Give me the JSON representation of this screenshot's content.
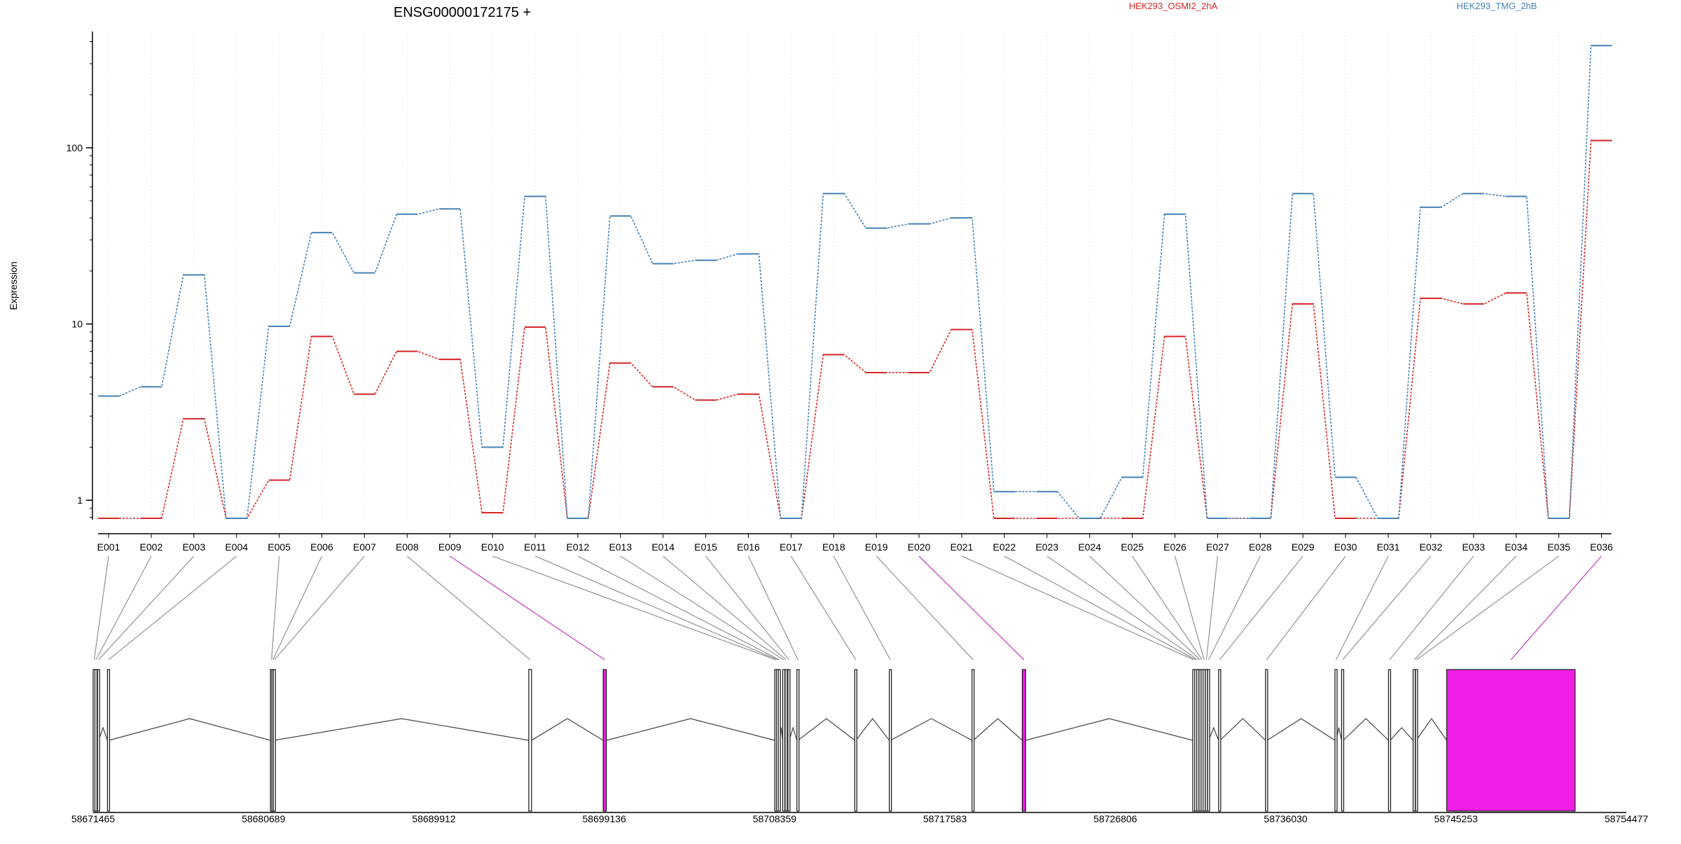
{
  "chart_data": {
    "type": "line",
    "title": "ENSG00000172175 +",
    "xlabel": "",
    "ylabel": "Expression",
    "y_scale": "log",
    "ylim": [
      0.45,
      450
    ],
    "y_ticks": [
      1,
      10,
      100
    ],
    "y_tick_labels": [
      "1",
      "10",
      "100"
    ],
    "grid": "vertical, light",
    "legend_position": "top-right",
    "categories": [
      "E001",
      "E002",
      "E003",
      "E004",
      "E005",
      "E006",
      "E007",
      "E008",
      "E009",
      "E010",
      "E011",
      "E012",
      "E013",
      "E014",
      "E015",
      "E016",
      "E017",
      "E018",
      "E019",
      "E020",
      "E021",
      "E022",
      "E023",
      "E024",
      "E025",
      "E026",
      "E027",
      "E028",
      "E029",
      "E030",
      "E031",
      "E032",
      "E033",
      "E034",
      "E035",
      "E036"
    ],
    "series": [
      {
        "name": "HEK293_OSMI2_2hA",
        "color": "#d62728",
        "values": [
          0.65,
          0.65,
          2.9,
          0.48,
          1.3,
          8.5,
          4.0,
          7.0,
          6.3,
          0.85,
          9.6,
          0.48,
          6.0,
          4.4,
          3.7,
          4.0,
          0.48,
          6.7,
          5.3,
          5.3,
          9.3,
          0.48,
          0.48,
          0.48,
          0.48,
          8.5,
          0.48,
          0.48,
          13.0,
          0.48,
          0.48,
          14.0,
          13.0,
          15.0,
          0.48,
          110
        ]
      },
      {
        "name": "HEK293_TMG_2hB",
        "color": "#4682b4",
        "values": [
          3.9,
          4.4,
          19,
          0.48,
          9.7,
          33,
          19.5,
          42,
          45,
          2.0,
          53,
          0.48,
          41,
          22,
          23,
          25,
          0.48,
          55,
          35,
          37,
          40,
          1.12,
          1.12,
          0.62,
          1.35,
          42,
          0.62,
          0.62,
          55,
          1.35,
          0.48,
          46,
          55,
          53,
          0.48,
          380
        ]
      }
    ],
    "genomic_axis": {
      "tick_labels": [
        "58671465",
        "58680689",
        "58689912",
        "58699136",
        "58708359",
        "58717583",
        "58726806",
        "58736030",
        "58745253",
        "58754477"
      ],
      "exons": [
        {
          "id": "E001",
          "start": 58671465,
          "end": 58671510,
          "highlight": false
        },
        {
          "id": "E002",
          "start": 58671560,
          "end": 58671640,
          "highlight": false
        },
        {
          "id": "E003",
          "start": 58671700,
          "end": 58671760,
          "highlight": false
        },
        {
          "id": "E004",
          "start": 58672240,
          "end": 58672310,
          "highlight": false
        },
        {
          "id": "E005",
          "start": 58681065,
          "end": 58681130,
          "highlight": false
        },
        {
          "id": "E006",
          "start": 58681140,
          "end": 58681210,
          "highlight": false
        },
        {
          "id": "E007",
          "start": 58681220,
          "end": 58681280,
          "highlight": false
        },
        {
          "id": "E008",
          "start": 58695050,
          "end": 58695200,
          "highlight": false
        },
        {
          "id": "E009",
          "start": 58699080,
          "end": 58699250,
          "highlight": true
        },
        {
          "id": "E010",
          "start": 58708370,
          "end": 58708420,
          "highlight": false
        },
        {
          "id": "E011",
          "start": 58708460,
          "end": 58708540,
          "highlight": false
        },
        {
          "id": "E012",
          "start": 58708560,
          "end": 58708640,
          "highlight": false
        },
        {
          "id": "E013",
          "start": 58708800,
          "end": 58708880,
          "highlight": false
        },
        {
          "id": "E014",
          "start": 58708930,
          "end": 58709000,
          "highlight": false
        },
        {
          "id": "E015",
          "start": 58709080,
          "end": 58709150,
          "highlight": false
        },
        {
          "id": "E016",
          "start": 58709570,
          "end": 58709630,
          "highlight": false
        },
        {
          "id": "E017",
          "start": 58712700,
          "end": 58712760,
          "highlight": false
        },
        {
          "id": "E018",
          "start": 58714570,
          "end": 58714640,
          "highlight": false
        },
        {
          "id": "E019",
          "start": 58719050,
          "end": 58719120,
          "highlight": false
        },
        {
          "id": "E020",
          "start": 58721770,
          "end": 58721950,
          "highlight": true
        },
        {
          "id": "E021",
          "start": 58731000,
          "end": 58731070,
          "highlight": false
        },
        {
          "id": "E022",
          "start": 58731110,
          "end": 58731170,
          "highlight": false
        },
        {
          "id": "E023",
          "start": 58731220,
          "end": 58731280,
          "highlight": false
        },
        {
          "id": "E024",
          "start": 58731340,
          "end": 58731400,
          "highlight": false
        },
        {
          "id": "E025",
          "start": 58731450,
          "end": 58731520,
          "highlight": false
        },
        {
          "id": "E026",
          "start": 58731560,
          "end": 58731630,
          "highlight": false
        },
        {
          "id": "E027",
          "start": 58731680,
          "end": 58731740,
          "highlight": false
        },
        {
          "id": "E028",
          "start": 58731800,
          "end": 58731860,
          "highlight": false
        },
        {
          "id": "E029",
          "start": 58732400,
          "end": 58732480,
          "highlight": false
        },
        {
          "id": "E030",
          "start": 58734940,
          "end": 58735030,
          "highlight": false
        },
        {
          "id": "E031",
          "start": 58738700,
          "end": 58738760,
          "highlight": false
        },
        {
          "id": "E032",
          "start": 58739060,
          "end": 58739150,
          "highlight": false
        },
        {
          "id": "E033",
          "start": 58741600,
          "end": 58741690,
          "highlight": false
        },
        {
          "id": "E034",
          "start": 58742930,
          "end": 58743020,
          "highlight": false
        },
        {
          "id": "E035",
          "start": 58743060,
          "end": 58743100,
          "highlight": false
        },
        {
          "id": "E036",
          "start": 58744750,
          "end": 58751700,
          "highlight": true
        }
      ],
      "exon_color": "#ffffff",
      "highlight_color": "#f01ee6"
    }
  }
}
